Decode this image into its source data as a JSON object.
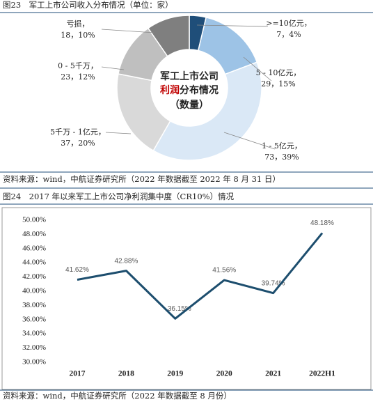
{
  "chart_data": [
    {
      "type": "pie",
      "title": "图23　军工上市公司收入分布情况（单位：家）",
      "center_title": [
        "军工上市公司",
        "利润",
        "分布情况",
        "（数量）"
      ],
      "center_title_colors": [
        "#222222",
        "#c00000",
        "#222222",
        "#222222"
      ],
      "categories": [
        ">=10亿元，",
        "5 - 10亿元，",
        "1 - 5亿元，",
        "5千万 - 1亿元，",
        "0 - 5千万，",
        "亏损，"
      ],
      "values": [
        7,
        29,
        73,
        37,
        23,
        18
      ],
      "percents": [
        4,
        15,
        39,
        20,
        12,
        10
      ],
      "value_labels": [
        "7，4%",
        "29，15%",
        "73，39%",
        "37，20%",
        "23，12%",
        "18，10%"
      ],
      "colors": [
        "#1f4e79",
        "#9dc3e6",
        "#dae8f6",
        "#d9d9d9",
        "#bfbfbf",
        "#7f7f7f"
      ],
      "source": "资料来源：wind，中航证券研究所（2022 年数据截至 2022 年 8 月 31 日）"
    },
    {
      "type": "line",
      "title": "图24　2017 年以来军工上市公司净利润集中度（CR10%）情况",
      "categories": [
        "2017",
        "2018",
        "2019",
        "2020",
        "2021",
        "2022H1"
      ],
      "values": [
        41.62,
        42.88,
        36.15,
        41.56,
        39.74,
        48.18
      ],
      "value_labels": [
        "41.62%",
        "42.88%",
        "36.15%",
        "41.56%",
        "39.74%",
        "48.18%"
      ],
      "color": "#1d4e6e",
      "ylim": [
        30,
        50
      ],
      "yticks": [
        {
          "value": 30,
          "label": "30.00%"
        },
        {
          "value": 32,
          "label": "32.00%"
        },
        {
          "value": 34,
          "label": "34.00%"
        },
        {
          "value": 36,
          "label": "36.00%"
        },
        {
          "value": 38,
          "label": "38.00%"
        },
        {
          "value": 40,
          "label": "40.00%"
        },
        {
          "value": 42,
          "label": "42.00%"
        },
        {
          "value": 44,
          "label": "44.00%"
        },
        {
          "value": 46,
          "label": "46.00%"
        },
        {
          "value": 48,
          "label": "48.00%"
        },
        {
          "value": 50,
          "label": "50.00%"
        }
      ],
      "source": "资料来源：wind，中航证券研究所（2022 年数据截至 8 月份）"
    }
  ]
}
